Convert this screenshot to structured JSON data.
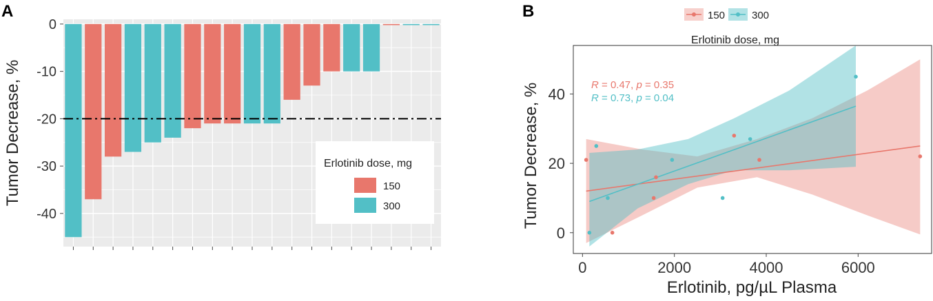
{
  "colors": {
    "c150": "#e8776c",
    "c300": "#52bfc6",
    "panel_bg": "#ebebeb",
    "grid": "#ffffff"
  },
  "chart_data": [
    {
      "panel_label": "A",
      "type": "bar",
      "title": "",
      "ylabel": "Tumor Decrease, %",
      "xlabel": "",
      "ylim": [
        -47,
        1
      ],
      "yticks": [
        0,
        -10,
        -20,
        -30,
        -40
      ],
      "ytick_labels": [
        "0",
        "-10",
        "-20",
        "-30",
        "-40"
      ],
      "threshold": -20,
      "threshold_style": "dash-dot",
      "legend": {
        "title": "Erlotinib dose, mg",
        "entries": [
          "150",
          "300"
        ],
        "position": "bottom-right"
      },
      "bars": [
        {
          "dose": "300",
          "value": -45
        },
        {
          "dose": "150",
          "value": -37
        },
        {
          "dose": "150",
          "value": -28
        },
        {
          "dose": "300",
          "value": -27
        },
        {
          "dose": "300",
          "value": -25
        },
        {
          "dose": "300",
          "value": -24
        },
        {
          "dose": "150",
          "value": -22
        },
        {
          "dose": "150",
          "value": -21
        },
        {
          "dose": "150",
          "value": -21
        },
        {
          "dose": "300",
          "value": -21
        },
        {
          "dose": "300",
          "value": -21
        },
        {
          "dose": "150",
          "value": -16
        },
        {
          "dose": "150",
          "value": -13
        },
        {
          "dose": "150",
          "value": -10
        },
        {
          "dose": "300",
          "value": -10
        },
        {
          "dose": "300",
          "value": -10
        },
        {
          "dose": "150",
          "value": 0
        },
        {
          "dose": "300",
          "value": 0
        },
        {
          "dose": "300",
          "value": 0
        }
      ]
    },
    {
      "panel_label": "B",
      "type": "scatter",
      "title": "",
      "xlabel": "Erlotinib, pg/µL Plasma",
      "ylabel": "Tumor Decrease, %",
      "xlim": [
        -200,
        7600
      ],
      "ylim": [
        -6,
        54
      ],
      "xticks": [
        0,
        2000,
        4000,
        6000
      ],
      "xtick_labels": [
        "0",
        "2000",
        "4000",
        "6000"
      ],
      "yticks": [
        0,
        20,
        40
      ],
      "ytick_labels": [
        "0",
        "20",
        "40"
      ],
      "legend": {
        "title": "Erlotinib dose, mg",
        "entries": [
          "150",
          "300"
        ],
        "position": "top"
      },
      "annotations": [
        {
          "dose": "150",
          "r_label": "R",
          "r_value": " = 0.47, ",
          "p_label": "p",
          "p_value": " = 0.35"
        },
        {
          "dose": "300",
          "r_label": "R",
          "r_value": " = 0.73, ",
          "p_label": "p",
          "p_value": " = 0.04"
        }
      ],
      "series": [
        {
          "name": "150",
          "points": [
            [
              80,
              21
            ],
            [
              650,
              0
            ],
            [
              1550,
              10
            ],
            [
              1600,
              16
            ],
            [
              3300,
              28
            ],
            [
              3850,
              21
            ],
            [
              7350,
              22
            ]
          ],
          "fit": {
            "x": [
              80,
              7350
            ],
            "y": [
              12,
              25
            ]
          },
          "band": {
            "x": [
              80,
              1300,
              2500,
              3800,
              5000,
              6200,
              7350
            ],
            "upper": [
              27,
              24,
              22,
              27,
              33,
              41,
              50
            ],
            "lower": [
              -3,
              5,
              13,
              16,
              11,
              5,
              -0.5
            ]
          }
        },
        {
          "name": "300",
          "points": [
            [
              150,
              0
            ],
            [
              300,
              25
            ],
            [
              550,
              10
            ],
            [
              1950,
              21
            ],
            [
              3050,
              10
            ],
            [
              3650,
              27
            ],
            [
              5950,
              45
            ]
          ],
          "fit": {
            "x": [
              150,
              5950
            ],
            "y": [
              9,
              36.5
            ]
          },
          "band": {
            "x": [
              150,
              1200,
              2300,
              3300,
              4500,
              5950
            ],
            "upper": [
              23,
              24,
              27,
              33,
              41,
              54
            ],
            "lower": [
              -4,
              7,
              14,
              18,
              18,
              19
            ]
          }
        }
      ]
    }
  ]
}
